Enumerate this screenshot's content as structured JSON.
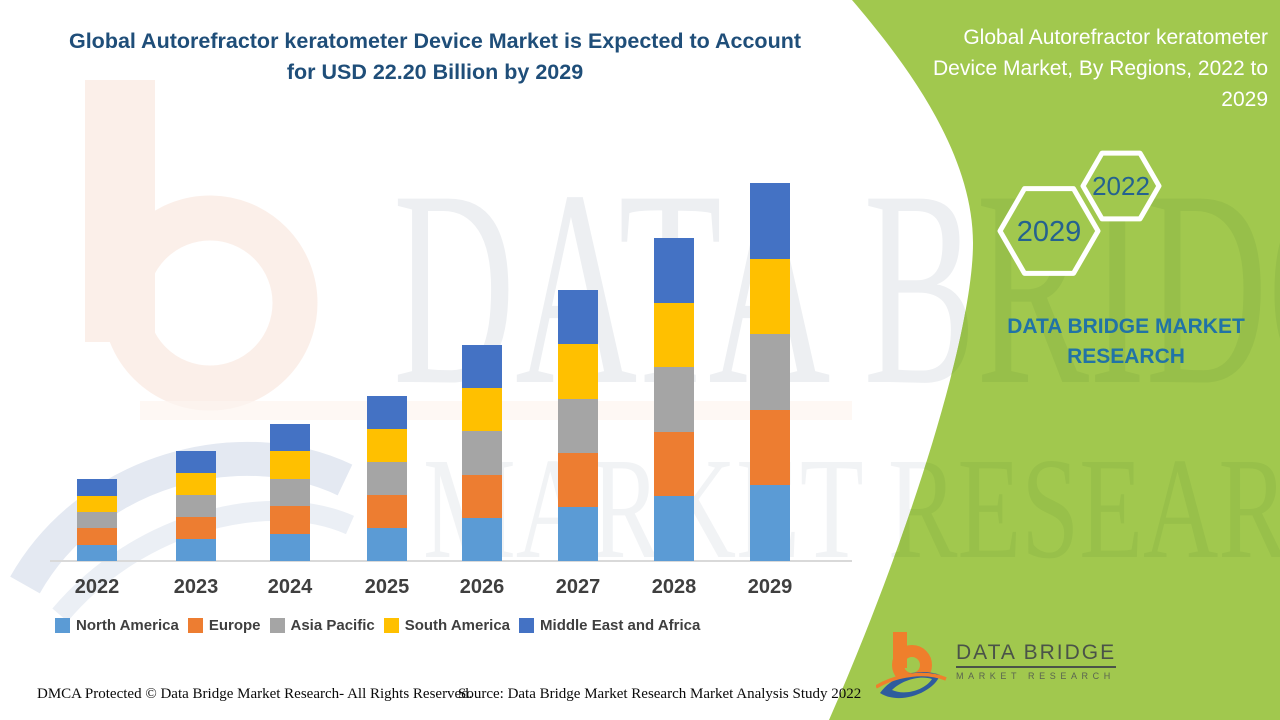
{
  "header": {
    "title": "Global Autorefractor keratometer Device Market is Expected to Account for USD 22.20 Billion by 2029"
  },
  "side_panel": {
    "title": "Global Autorefractor keratometer Device Market, By Regions, 2022 to 2029",
    "hexagons": {
      "large": "2029",
      "small": "2022"
    },
    "brand": "DATA BRIDGE MARKET RESEARCH"
  },
  "watermark": {
    "line1": "DATA BRIDGE",
    "line2": "MARKET RESEARCH"
  },
  "chart_data": {
    "type": "bar",
    "stacked": true,
    "unit": "USD Billion",
    "title": "",
    "xlabel": "",
    "ylabel": "",
    "gridlines": false,
    "legend_position": "bottom",
    "categories": [
      "2022",
      "2023",
      "2024",
      "2025",
      "2026",
      "2027",
      "2028",
      "2029"
    ],
    "series": [
      {
        "name": "North America",
        "color": "#5B9BD5",
        "values": [
          0.96,
          1.29,
          1.61,
          1.94,
          2.54,
          3.18,
          3.79,
          4.44
        ]
      },
      {
        "name": "Europe",
        "color": "#ED7D31",
        "values": [
          0.96,
          1.29,
          1.61,
          1.94,
          2.54,
          3.18,
          3.79,
          4.44
        ]
      },
      {
        "name": "Asia Pacific",
        "color": "#A5A5A5",
        "values": [
          0.96,
          1.29,
          1.61,
          1.94,
          2.54,
          3.18,
          3.79,
          4.44
        ]
      },
      {
        "name": "South America",
        "color": "#FFC000",
        "values": [
          0.96,
          1.29,
          1.61,
          1.94,
          2.54,
          3.18,
          3.79,
          4.44
        ]
      },
      {
        "name": "Middle East and Africa",
        "color": "#4472C4",
        "values": [
          0.96,
          1.29,
          1.61,
          1.94,
          2.54,
          3.18,
          3.79,
          4.44
        ]
      }
    ],
    "totals_usd_billion": [
      4.82,
      6.46,
      8.05,
      9.69,
      12.69,
      15.92,
      18.97,
      22.2
    ],
    "stated_projection": "USD 22.20 Billion by 2029"
  },
  "logo": {
    "name": "DATA BRIDGE",
    "tagline": "MARKET RESEARCH"
  },
  "footer": {
    "left": "DMCA Protected © Data Bridge Market Research- All Rights Reserved.",
    "right": "Source: Data Bridge Market Research Market Analysis Study 2022"
  },
  "colors": {
    "green_panel": "#A1C84E",
    "title_blue": "#1F4E79",
    "brand_blue": "#2173A6",
    "hexagon_text": "#25628F",
    "axis_label": "#3F3F3F",
    "legend_label": "#3F3F3F",
    "watermark_gray": "#EDEFF2",
    "watermark_on_green": "#97BF4A",
    "logo_orange": "#EF7F2C",
    "logo_blue": "#2E5C9E"
  }
}
